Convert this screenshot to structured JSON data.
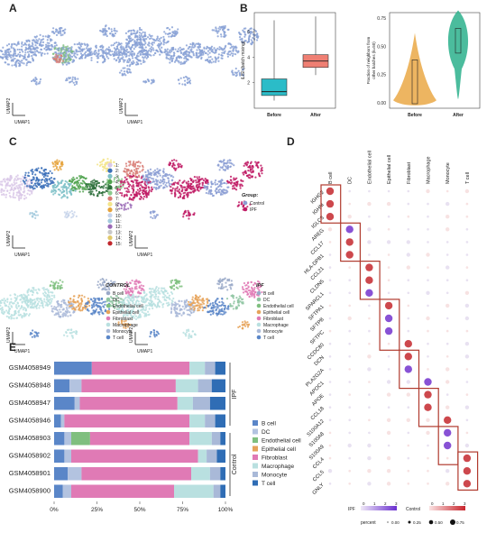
{
  "panels": {
    "A": "A",
    "B": "B",
    "C": "C",
    "D": "D",
    "E": "E"
  },
  "umap": {
    "x": "UMAP1",
    "y": "UMAP2"
  },
  "panel_b": {
    "box": {
      "ylabel": "iLISI (batch mixing)",
      "ticks": [
        "2",
        "4",
        "6"
      ],
      "categories": [
        "Before",
        "After"
      ],
      "medians": [
        1.3,
        3.7
      ],
      "q1": [
        1.0,
        3.2
      ],
      "q3": [
        2.3,
        4.2
      ],
      "whisk_hi": [
        4.3,
        5.6
      ],
      "max": [
        6.9,
        7.2
      ],
      "colors": [
        "#2bbcc8",
        "#ef7f73"
      ]
    },
    "violin": {
      "ylabel": "Fraction of neighbors from\nother batches (k=50)",
      "ticks": [
        "0.00",
        "0.25",
        "0.50",
        "0.75"
      ],
      "categories": [
        "Before",
        "After"
      ],
      "medians": [
        0.03,
        0.55
      ],
      "colors": [
        "#e8a33a",
        "#2bb08c"
      ]
    }
  },
  "panel_c": {
    "clusters": [
      "1",
      "2",
      "3",
      "4",
      "5",
      "6",
      "7",
      "8",
      "9",
      "10",
      "11",
      "12",
      "13",
      "14",
      "15"
    ],
    "cluster_colors": [
      "#d9c8e8",
      "#3a6fb8",
      "#7fc1c8",
      "#4fa24d",
      "#2d6f3b",
      "#8cc98d",
      "#d87c75",
      "#f3e48a",
      "#e5a23a",
      "#c7d3ea",
      "#a3cadd",
      "#9a6ab6",
      "#c8c8c8",
      "#e0c86a",
      "#c1272d"
    ],
    "group_title": "Group:",
    "groups": [
      "Control",
      "IPF"
    ],
    "group_colors": [
      "#8b9ed3",
      "#c01a64"
    ],
    "control_title": "CONTROL",
    "ipf_title": "IPF",
    "celltypes": [
      "B cell",
      "DC",
      "Endothelial cell",
      "Epithelial cell",
      "Fibroblast",
      "Macrophage",
      "Monocyte",
      "T cell"
    ],
    "celltype_colors": [
      "#9aa9c8",
      "#8fc6a2",
      "#7fbf7f",
      "#e6a35a",
      "#e07ab5",
      "#b9e0e0",
      "#a9b9d8",
      "#5a86c8"
    ]
  },
  "panel_d": {
    "columns": [
      "B cell",
      "DC",
      "Endothelial cell",
      "Epithelial cell",
      "Fibroblast",
      "Macrophage",
      "Monocyte",
      "T cell"
    ],
    "genes": [
      "IGHG2",
      "IGHM",
      "IGLC3",
      "AREG",
      "CCL17",
      "HLA-DPB1",
      "CCL21",
      "CLDN5",
      "SPARCL1",
      "SFTPA1",
      "SFTPB",
      "SFTPC",
      "CCDC80",
      "DCN",
      "PLA2G2A",
      "APOC1",
      "APOE",
      "CCL18",
      "S100A12",
      "S100A8",
      "S100A9",
      "CCL4",
      "CCL5",
      "GNLY"
    ],
    "legend_ipf": "IPF",
    "legend_control": "Control",
    "legend_ticks": [
      "0",
      "1",
      "2",
      "3"
    ],
    "percent_label": "percent",
    "percent_values": [
      "0.00",
      "0.25",
      "0.50",
      "0.75"
    ]
  },
  "panel_e": {
    "samples": [
      "GSM4058949",
      "GSM4058948",
      "GSM4058947",
      "GSM4058946",
      "GSM4058903",
      "GSM4058902",
      "GSM4058901",
      "GSM4058900"
    ],
    "groups": [
      {
        "name": "IPF"
      },
      {
        "name": "Control"
      }
    ],
    "xticks": [
      "0%",
      "25%",
      "50%",
      "75%",
      "100%"
    ],
    "chart_data": {
      "type": "bar",
      "orientation": "horizontal stacked",
      "categories": [
        "GSM4058949",
        "GSM4058948",
        "GSM4058947",
        "GSM4058946",
        "GSM4058903",
        "GSM4058902",
        "GSM4058901",
        "GSM4058900"
      ],
      "series": [
        {
          "name": "B cell",
          "values": [
            0.0,
            0.0,
            0.0,
            0.0,
            0.0,
            0.0,
            0.0,
            0.0
          ]
        },
        {
          "name": "DC",
          "values": [
            0.0,
            0.0,
            0.0,
            0.0,
            0.0,
            0.0,
            0.0,
            0.0
          ]
        },
        {
          "name": "Endothelial cell",
          "values": [
            0.0,
            0.0,
            0.0,
            0.0,
            0.0,
            0.0,
            0.0,
            0.0
          ]
        },
        {
          "name": "Epithelial cell",
          "values": [
            0.0,
            0.0,
            0.0,
            0.0,
            0.0,
            0.0,
            0.0,
            0.0
          ]
        },
        {
          "name": "Fibroblast",
          "values": [
            0.0,
            0.0,
            0.0,
            0.0,
            0.0,
            0.0,
            0.0,
            0.0
          ]
        },
        {
          "name": "Macrophage",
          "values": [
            0.0,
            0.0,
            0.0,
            0.0,
            0.0,
            0.0,
            0.0,
            0.0
          ]
        },
        {
          "name": "Monocyte",
          "values": [
            0.0,
            0.0,
            0.0,
            0.0,
            0.0,
            0.0,
            0.0,
            0.0
          ]
        },
        {
          "name": "T cell",
          "values": [
            0.0,
            0.0,
            0.0,
            0.0,
            0.0,
            0.0,
            0.0,
            0.0
          ]
        }
      ],
      "stack_bounds": [
        [
          0.0,
          0.22,
          0.22,
          0.22,
          0.22,
          0.79,
          0.88,
          0.94
        ],
        [
          0.0,
          0.09,
          0.16,
          0.16,
          0.16,
          0.71,
          0.84,
          0.92
        ],
        [
          0.0,
          0.12,
          0.15,
          0.15,
          0.15,
          0.72,
          0.81,
          0.91
        ],
        [
          0.0,
          0.04,
          0.06,
          0.06,
          0.06,
          0.79,
          0.88,
          0.94
        ],
        [
          0.0,
          0.06,
          0.1,
          0.21,
          0.21,
          0.79,
          0.92,
          0.97
        ],
        [
          0.0,
          0.06,
          0.1,
          0.1,
          0.1,
          0.84,
          0.89,
          0.95
        ],
        [
          0.0,
          0.08,
          0.16,
          0.16,
          0.16,
          0.8,
          0.91,
          0.97
        ],
        [
          0.0,
          0.05,
          0.1,
          0.1,
          0.1,
          0.7,
          0.93,
          0.97
        ]
      ],
      "colors": [
        "#5a86c8",
        "#b3c3e0",
        "#7fbf7f",
        "#e6a35a",
        "#e07ab5",
        "#b9e0e0",
        "#a9b9d8",
        "#2f6db5"
      ]
    }
  }
}
